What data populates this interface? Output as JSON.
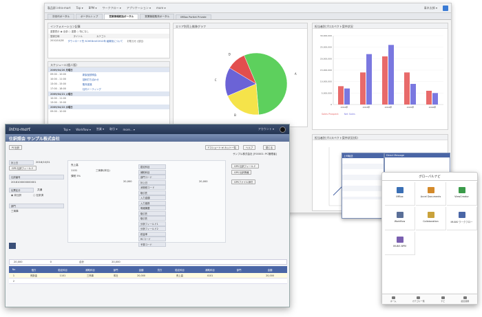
{
  "portal": {
    "topbar_items": [
      "製品群 intra-mart",
      "Top ▾",
      "BPM ▾",
      "ワークフロー ▾",
      "アプリケーション ▾",
      "more ▾"
    ],
    "user": "青木太郎 ▾",
    "tabs": [
      "次世代ポータル",
      "ポータルトップ",
      "営業情報統括ポータル",
      "営業機能販売ポータル",
      "IMBox Portlet Private"
    ],
    "active_tab_index": 2,
    "info_panel": {
      "title": "インフォメーション記事",
      "filters": "重要表示 ◉ 全部 ○ 重要 ○ 特になし",
      "headers": [
        "登録日時",
        "タイトル",
        "カテゴリ"
      ],
      "rows": [
        [
          "2010/10/28",
          "ダウンロード先 SCHEDULE2012年 組織化について",
          "お知らせ (全社)"
        ],
        [
          "2010/10/15",
          "",
          ""
        ]
      ]
    },
    "schedule_panel": {
      "title": "スケジュール(個人版)",
      "groups": [
        {
          "date": "2009/04/20 月曜日",
          "items": [
            "09:00 - 10:00",
            "10:00 - 11:00",
            "13:00 - 15:00",
            "17:00 - 18:00"
          ]
        },
        {
          "date": "2009/04/21 火曜日",
          "items": [
            "10:00 - 11:00",
            "13:00 - 15:00"
          ]
        },
        {
          "date": "2009/04/22 水曜日",
          "items": [
            "09:00 - 10:00",
            "13:00 - 15:00",
            "15:00 - 16:00"
          ]
        }
      ],
      "notes": [
        "新製品説明会",
        "技術打ち合わせ",
        "販売促進",
        "社内ミーティング"
      ]
    },
    "pie_panel": {
      "title": "エリア別売上推移グラフ"
    },
    "bar_panel": {
      "title": "担当者別プロスペクト案件状況",
      "legend": [
        "Sales Prospect",
        "Net Sales"
      ]
    },
    "line_panel": {
      "title": "担当者別プロスペクト案件状況(折)",
      "popup_title": "上司転送",
      "popup_title2": "Direct Message"
    }
  },
  "main": {
    "brand": "intra-mart",
    "nav": [
      "Top ▾",
      "Workflow ▾",
      "営業 ▾",
      "取引 ▾",
      "more... ▾"
    ],
    "user": "アカウント ▾",
    "company_title": "仕訳照会 サンプル株式会社",
    "buttons": {
      "pc": "PC仕訳",
      "back": "Fコショート ▾/ カット一覧",
      "help": "ヘルプ",
      "close": "閉じる",
      "gps1": "GPS 仕訳フィールド",
      "gps2": "GPS 仕訳情報",
      "gps3": "GPSファイル添付"
    },
    "company_meta": "サンプル株式会社 [F00001: PC管理者]",
    "fields": {
      "entry_date": "計上日",
      "entry_date_value": "2018/10/31",
      "voucher_no_label": "仕訳番号",
      "voucher_no": "2018100000000001",
      "type_label": "伝票区分",
      "type_value": "共通",
      "dept_label": "部門",
      "dept_value": "三商事",
      "account": "売上高",
      "sub_account": "1101",
      "customer": "三商事(本社)",
      "tax": "課税 5%",
      "tax_rate": "5%",
      "amount_debit": "20,000",
      "amount_credit": "20,000"
    },
    "radio_options": [
      "未仕訳",
      "仕訳済"
    ],
    "table": {
      "headers": [
        "No",
        "借方",
        "勘定科目",
        "補助科目",
        "部門",
        "金額",
        "貸方",
        "勘定科目",
        "補助科目",
        "部門",
        "金額"
      ],
      "rows": [
        [
          "1",
          "売掛金",
          "1101",
          "三商事",
          "本社",
          "20,000",
          "",
          "売上高",
          "4101",
          "",
          "20,000"
        ],
        [
          "2",
          "",
          "",
          "",
          "",
          "",
          "",
          "",
          "",
          "",
          ""
        ]
      ],
      "total_label": "合計",
      "total_debit": "20,000",
      "total_credit": "20,000",
      "tax_total": "0"
    },
    "side_labels": [
      "勘定科目",
      "補助科目",
      "部門コード",
      "計上日",
      "消費税コード",
      "取引先",
      "入力金額",
      "入力換算",
      "明細摘要",
      "取引先",
      "取引先",
      "分析フィールド1",
      "分析フィールド2",
      "税金率",
      "RCコード",
      "予算コード"
    ]
  },
  "mobile": {
    "title": "グローバルナビ",
    "tiles": [
      "IMBox",
      "Accel Documents",
      "ViewCreator",
      "Workflow",
      "Collaboration",
      "IM-BIS ワークフロー",
      "IM-BIS BPM"
    ],
    "tile_colors": [
      "#3a6fb5",
      "#d48a2a",
      "#3b9b4a",
      "#5a6f98",
      "#c9a23b",
      "#4a66a6",
      "#7a5fb0"
    ],
    "footer": [
      "ホーム",
      "カテゴリ一覧",
      "ナビ",
      "最近使用"
    ]
  },
  "chart_data": [
    {
      "type": "pie",
      "title": "エリア別売上推移グラフ",
      "slices": [
        {
          "label": "A",
          "value": 55,
          "color": "#5dd05d"
        },
        {
          "label": "B",
          "value": 20,
          "color": "#f5e34a"
        },
        {
          "label": "C",
          "value": 15,
          "color": "#6b63d6"
        },
        {
          "label": "D",
          "value": 10,
          "color": "#e24e4e"
        }
      ]
    },
    {
      "type": "bar",
      "title": "担当者別プロスペクト案件状況",
      "categories": [
        "2012年",
        "2013年",
        "2014年",
        "2015年",
        "2016年"
      ],
      "series": [
        {
          "name": "Sales Prospect",
          "values": [
            8000000,
            14000000,
            21000000,
            14000000,
            6000000
          ],
          "color": "#e86a6a"
        },
        {
          "name": "Net Sales",
          "values": [
            7000000,
            22000000,
            26000000,
            9000000,
            5000000
          ],
          "color": "#7a78e0"
        }
      ],
      "ylim": [
        0,
        30000000
      ]
    }
  ]
}
